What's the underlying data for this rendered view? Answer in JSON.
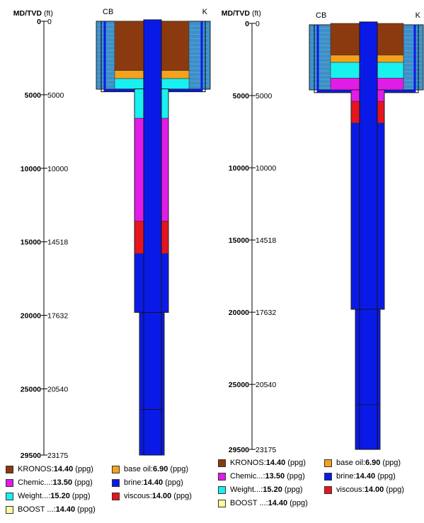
{
  "axis": {
    "title": "MD/TVD",
    "unit": "(ft)",
    "ticks": [
      {
        "md": 0,
        "tvd": 0,
        "md_label": "0",
        "tvd_label": "0"
      },
      {
        "md": 5000,
        "tvd": 5000,
        "md_label": "5000",
        "tvd_label": "5000"
      },
      {
        "md": 10000,
        "tvd": 10000,
        "md_label": "10000",
        "tvd_label": "10000"
      },
      {
        "md": 15000,
        "tvd": 14518,
        "md_label": "15000",
        "tvd_label": "14518"
      },
      {
        "md": 20000,
        "tvd": 17632,
        "md_label": "20000",
        "tvd_label": "17632"
      },
      {
        "md": 25000,
        "tvd": 20540,
        "md_label": "25000",
        "tvd_label": "20540"
      },
      {
        "md": 29500,
        "tvd": 23175,
        "md_label": "29500",
        "tvd_label": "23175"
      }
    ]
  },
  "header_labels": {
    "cb": "CB",
    "k": "K"
  },
  "colors": {
    "sea": "#3d8fc8",
    "kronos": "#8b3a0f",
    "base_oil": "#f4a21c",
    "chemic": "#e21be8",
    "weight": "#19f0f0",
    "brine": "#0a1ae6",
    "viscous": "#e5141e",
    "boost": "#fffb9a",
    "casing_line": "#222222"
  },
  "diagrams": [
    {
      "id": "left",
      "annulus": [
        {
          "fluid": "kronos",
          "from_md": 0,
          "to_md": 3350
        },
        {
          "fluid": "base_oil",
          "from_md": 3350,
          "to_md": 3900
        },
        {
          "fluid": "weight",
          "from_md": 3900,
          "to_md": 6600
        },
        {
          "fluid": "chemic",
          "from_md": 6600,
          "to_md": 13600
        },
        {
          "fluid": "viscous",
          "from_md": 13600,
          "to_md": 15800
        },
        {
          "fluid": "brine",
          "from_md": 15800,
          "to_md": 19800
        }
      ]
    },
    {
      "id": "right",
      "annulus": [
        {
          "fluid": "kronos",
          "from_md": 0,
          "to_md": 2200
        },
        {
          "fluid": "base_oil",
          "from_md": 2200,
          "to_md": 2700
        },
        {
          "fluid": "weight",
          "from_md": 2700,
          "to_md": 3800
        },
        {
          "fluid": "chemic",
          "from_md": 3800,
          "to_md": 5400
        },
        {
          "fluid": "viscous",
          "from_md": 5400,
          "to_md": 6900
        },
        {
          "fluid": "brine",
          "from_md": 6900,
          "to_md": 19800
        }
      ]
    }
  ],
  "legend": [
    {
      "key": "kronos",
      "name": "KRONOS",
      "value": "14.40",
      "unit": "(ppg)"
    },
    {
      "key": "chemic",
      "name": "Chemic...",
      "value": "13.50",
      "unit": "(ppg)"
    },
    {
      "key": "weight",
      "name": "Weight...",
      "value": "15.20",
      "unit": "(ppg)"
    },
    {
      "key": "boost",
      "name": "BOOST ...",
      "value": "14.40",
      "unit": "(ppg)"
    },
    {
      "key": "base_oil",
      "name": "base oil",
      "value": "6.90",
      "unit": "(ppg)"
    },
    {
      "key": "brine",
      "name": "brine",
      "value": "14.40",
      "unit": "(ppg)"
    },
    {
      "key": "viscous",
      "name": "viscous",
      "value": "14.00",
      "unit": "(ppg)"
    }
  ]
}
